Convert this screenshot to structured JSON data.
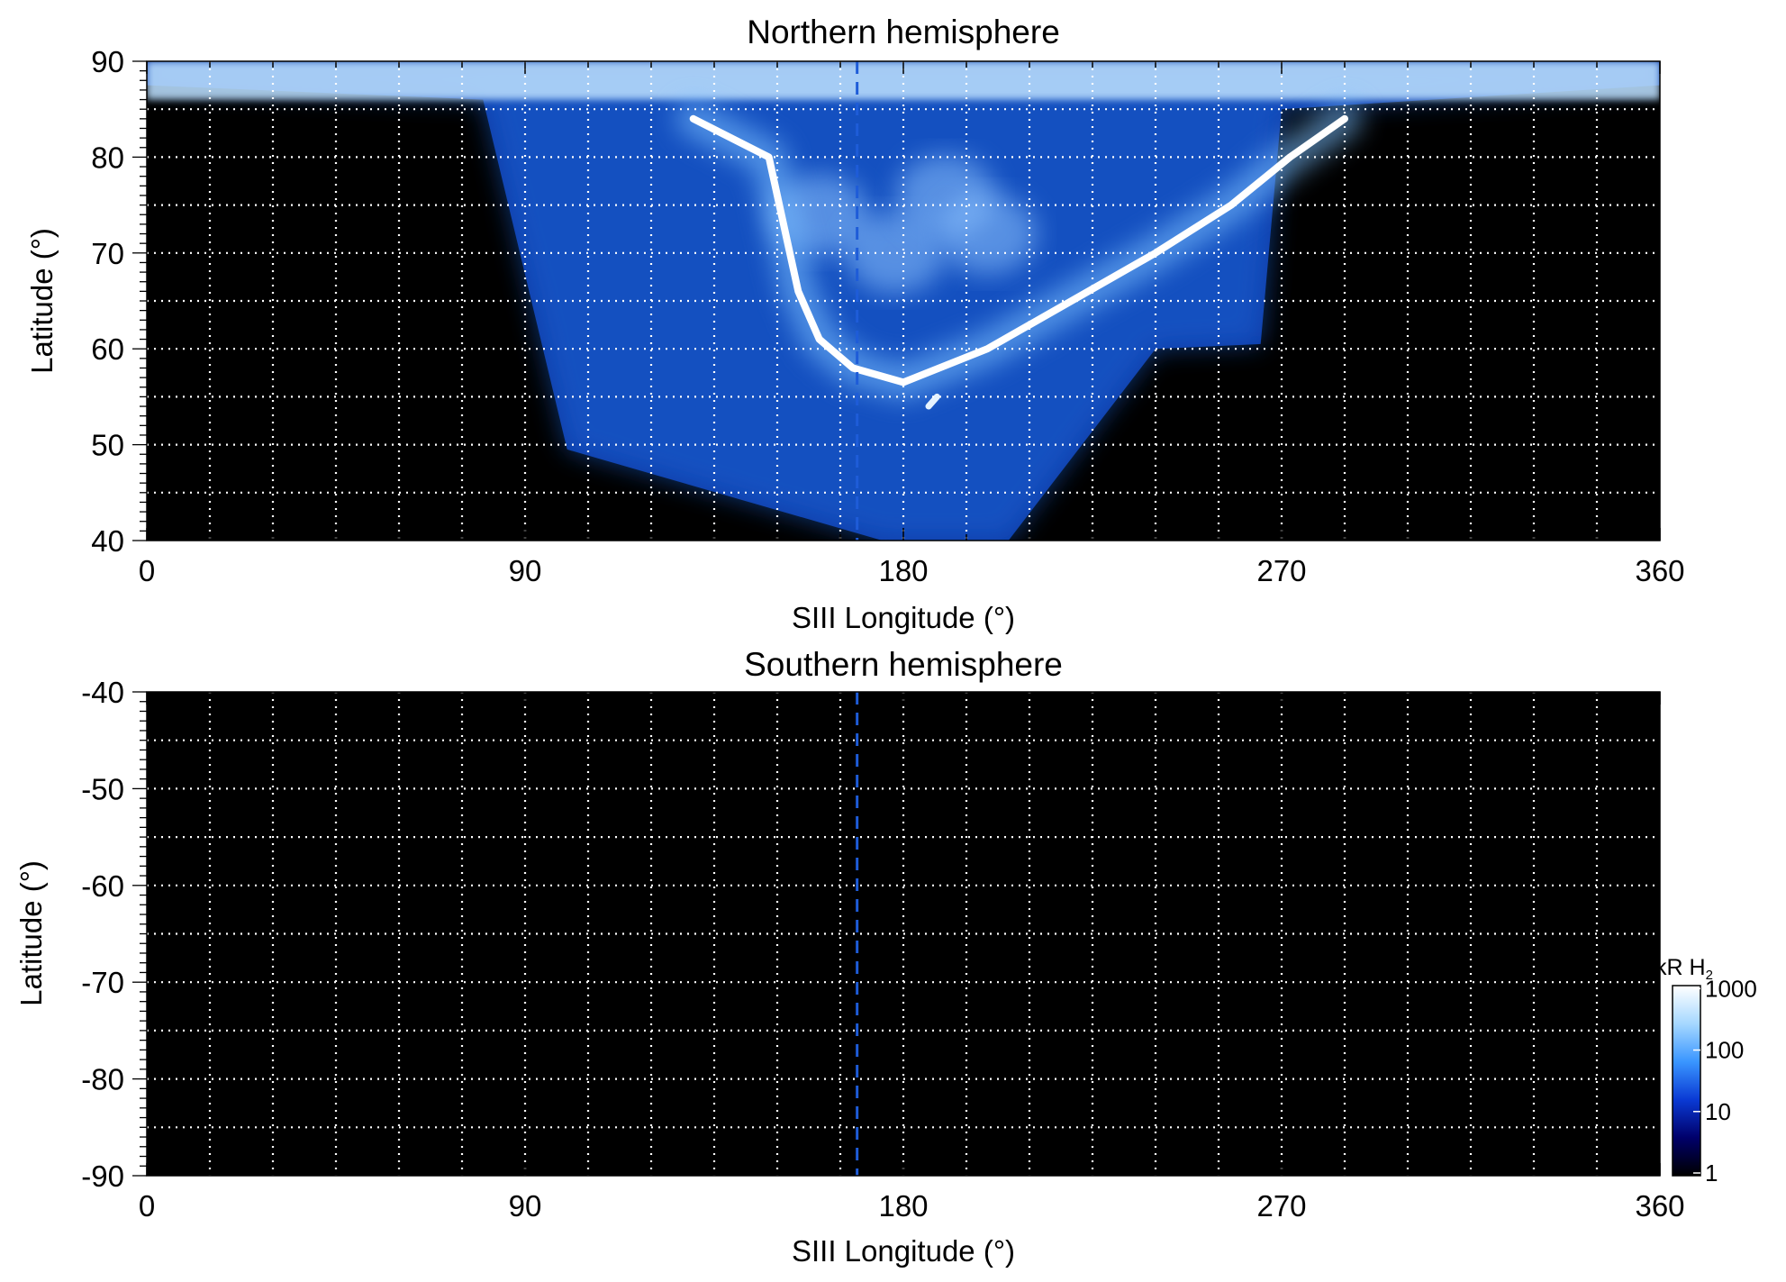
{
  "chart_data": [
    {
      "type": "heatmap",
      "title": "Northern hemisphere",
      "xlabel": "SIII Longitude (°)",
      "ylabel": "Latitude (°)",
      "xlim": [
        0,
        360
      ],
      "ylim": [
        40,
        90
      ],
      "xticks": [
        0,
        90,
        180,
        270,
        360
      ],
      "yticks": [
        40,
        50,
        60,
        70,
        80,
        90
      ],
      "grid": true,
      "reference_line_longitude": 169,
      "background": "#000000",
      "emission": {
        "coverage": [
          [
            0,
            87.5
          ],
          [
            80,
            86
          ],
          [
            100,
            49.5
          ],
          [
            175,
            40
          ],
          [
            205,
            40
          ],
          [
            240,
            60
          ],
          [
            265,
            60.5
          ],
          [
            270,
            85
          ],
          [
            360,
            87.5
          ]
        ],
        "main_oval": [
          [
            130,
            84
          ],
          [
            148,
            80
          ],
          [
            152,
            72
          ],
          [
            155,
            66
          ],
          [
            160,
            61
          ],
          [
            168,
            58
          ],
          [
            180,
            56.5
          ],
          [
            200,
            60
          ],
          [
            220,
            65
          ],
          [
            240,
            70
          ],
          [
            258,
            75
          ],
          [
            272,
            80
          ],
          [
            285,
            84
          ]
        ],
        "emission_spot": [
          [
            186,
            54
          ],
          [
            188,
            55
          ]
        ],
        "polar_patches": [
          [
            160,
            74
          ],
          [
            178,
            70
          ],
          [
            190,
            76
          ],
          [
            200,
            72
          ]
        ]
      }
    },
    {
      "type": "heatmap",
      "title": "Southern hemisphere",
      "xlabel": "SIII Longitude (°)",
      "ylabel": "Latitude (°)",
      "xlim": [
        0,
        360
      ],
      "ylim": [
        -90,
        -40
      ],
      "xticks": [
        0,
        90,
        180,
        270,
        360
      ],
      "yticks": [
        -40,
        -50,
        -60,
        -70,
        -80,
        -90
      ],
      "grid": true,
      "reference_line_longitude": 169,
      "background": "#000000"
    }
  ],
  "colorbar": {
    "label_main": "kR H",
    "label_sub": "2",
    "scale": "log",
    "ticks": [
      "1",
      "10",
      "100",
      "1000"
    ],
    "colors": [
      "#000000",
      "#00006a",
      "#0a3ad4",
      "#3a96ff",
      "#a6d8ff",
      "#ffffff"
    ]
  }
}
